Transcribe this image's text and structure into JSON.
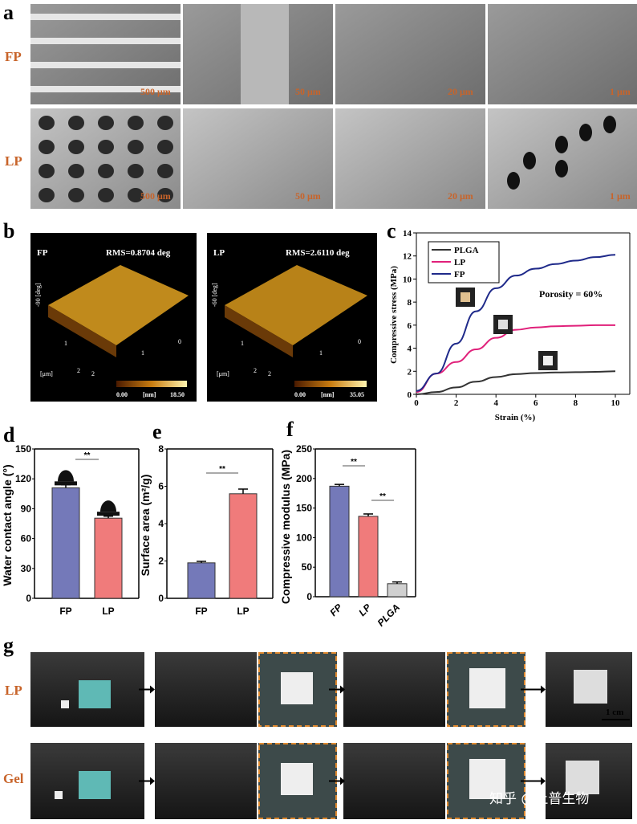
{
  "panels": {
    "a": "a",
    "b": "b",
    "c": "c",
    "d": "d",
    "e": "e",
    "f": "f",
    "g": "g"
  },
  "panel_a": {
    "rows": [
      "FP",
      "LP"
    ],
    "scales": [
      [
        "500 μm",
        "50 μm",
        "20 μm",
        "1 μm"
      ],
      [
        "500 μm",
        "50 μm",
        "20 μm",
        "1 μm"
      ]
    ]
  },
  "panel_b": {
    "images": [
      {
        "label": "FP",
        "rms": "RMS=0.8704 deg",
        "z_axis": "-90 [deg]",
        "xy_unit": "[μm]",
        "ticks": [
          "2",
          "1",
          "0",
          "1",
          "2"
        ],
        "scale_min": "0.00",
        "scale_unit": "[nm]",
        "scale_max": "18.50"
      },
      {
        "label": "LP",
        "rms": "RMS=2.6110 deg",
        "z_axis": "-60 [deg]",
        "xy_unit": "[μm]",
        "ticks": [
          "2",
          "1",
          "0",
          "1",
          "2"
        ],
        "scale_min": "0.00",
        "scale_unit": "[nm]",
        "scale_max": "35.05"
      }
    ]
  },
  "panel_g": {
    "rows": [
      "LP",
      "Gel"
    ],
    "scale_bar": "1 cm",
    "watermark": "知乎 @上普生物"
  },
  "colors": {
    "FP": "#7479b9",
    "LP": "#f07b7b",
    "PLGA": "#d0d0d0",
    "line_FP": "#1f2a8a",
    "line_LP": "#e0207a",
    "line_PLGA": "#333333",
    "label_orange": "#c8642a"
  },
  "chart_data": [
    {
      "type": "line",
      "xlabel": "Strain (%)",
      "ylabel": "Compressive stress (MPa)",
      "xlim": [
        0,
        10
      ],
      "ylim": [
        0,
        14
      ],
      "xticks": [
        "0",
        "2",
        "4",
        "6",
        "8",
        "10"
      ],
      "yticks": [
        "0",
        "2",
        "4",
        "6",
        "8",
        "10",
        "12",
        "14"
      ],
      "annotation": "Porosity = 60%",
      "legend_position": "top-left",
      "x": [
        0,
        1,
        2,
        3,
        4,
        5,
        6,
        7,
        8,
        9,
        10
      ],
      "series": [
        {
          "name": "PLGA",
          "values": [
            0.0,
            0.2,
            0.6,
            1.1,
            1.5,
            1.75,
            1.85,
            1.9,
            1.92,
            1.95,
            2.0
          ]
        },
        {
          "name": "LP",
          "values": [
            0.2,
            1.8,
            2.8,
            3.9,
            4.9,
            5.6,
            5.8,
            5.9,
            5.95,
            6.0,
            6.0
          ]
        },
        {
          "name": "FP",
          "values": [
            0.3,
            1.8,
            4.4,
            7.2,
            9.2,
            10.3,
            10.9,
            11.3,
            11.6,
            11.9,
            12.1
          ]
        }
      ]
    },
    {
      "type": "bar",
      "ylabel": "Water contact angle (°)",
      "ylim": [
        0,
        150
      ],
      "yticks": [
        "0",
        "30",
        "60",
        "90",
        "120",
        "150"
      ],
      "categories": [
        "FP",
        "LP"
      ],
      "values": [
        111,
        80.5
      ],
      "errors": [
        3,
        2
      ],
      "significance": [
        {
          "from": "FP",
          "to": "LP",
          "label": "**"
        }
      ]
    },
    {
      "type": "bar",
      "ylabel": "Surface area (m²/g)",
      "ylim": [
        0,
        8
      ],
      "yticks": [
        "0",
        "2",
        "4",
        "6",
        "8"
      ],
      "categories": [
        "FP",
        "LP"
      ],
      "values": [
        1.9,
        5.6
      ],
      "errors": [
        0.08,
        0.25
      ],
      "significance": [
        {
          "from": "FP",
          "to": "LP",
          "label": "**"
        }
      ]
    },
    {
      "type": "bar",
      "ylabel": "Compressive modulus (MPa)",
      "ylim": [
        0,
        250
      ],
      "yticks": [
        "0",
        "50",
        "100",
        "150",
        "200",
        "250"
      ],
      "categories": [
        "FP",
        "LP",
        "PLGA"
      ],
      "values": [
        187,
        136,
        22
      ],
      "errors": [
        3,
        4,
        3
      ],
      "significance": [
        {
          "from": "FP",
          "to": "LP",
          "label": "**"
        },
        {
          "from": "LP",
          "to": "PLGA",
          "label": "**"
        }
      ]
    }
  ]
}
